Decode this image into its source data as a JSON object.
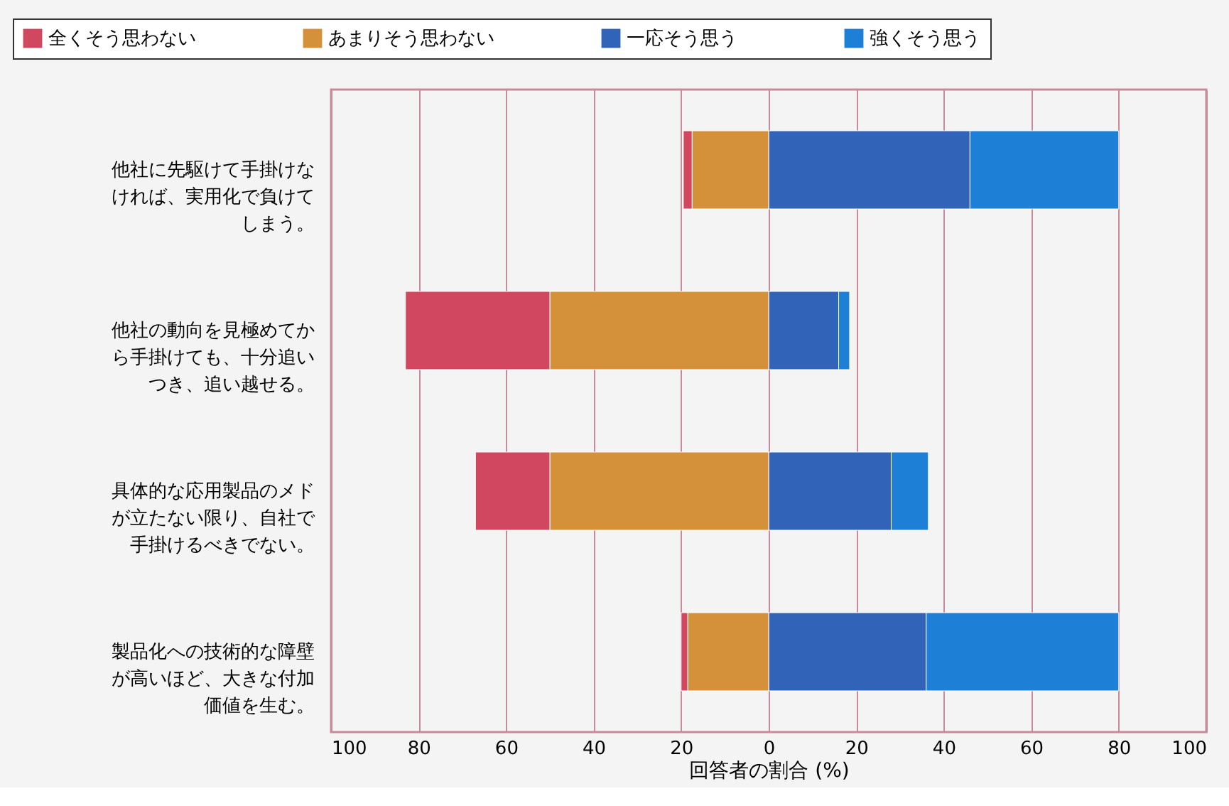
{
  "chart_data": {
    "type": "bar",
    "orientation": "horizontal",
    "stacked": true,
    "xlabel": "回答者の割合 (%)",
    "categories": [
      "他社に先駆けて手掛けなければ、実用化で負けてしまう。",
      "他社の動向を見極めてから手掛けても、十分追いつき、追い越せる。",
      "具体的な応用製品のメドが立たない限り、自社で手掛けるべきでない。",
      "製品化への技術的な障壁が高いほど、大きな付加価値を生む。"
    ],
    "series": [
      {
        "name": "全くそう思わない",
        "color": "#d0475f",
        "values": [
          -2,
          -33,
          -17,
          -1.5
        ]
      },
      {
        "name": "あまりそう思わない",
        "color": "#d4913a",
        "values": [
          -17.5,
          -50,
          -50,
          -18.5
        ]
      },
      {
        "name": "一応そう思う",
        "color": "#3163b9",
        "values": [
          46,
          16,
          28,
          36
        ]
      },
      {
        "name": "強くそう思う",
        "color": "#1e7fd6",
        "values": [
          34,
          2.5,
          8.5,
          44
        ]
      }
    ],
    "xlim": [
      -100,
      100
    ],
    "xticks": [
      {
        "value": -100,
        "label": "100"
      },
      {
        "value": -80,
        "label": "80"
      },
      {
        "value": -60,
        "label": "60"
      },
      {
        "value": -40,
        "label": "40"
      },
      {
        "value": -20,
        "label": "20"
      },
      0,
      20,
      40,
      60,
      80,
      100
    ],
    "grid": "x",
    "legend": "top"
  }
}
